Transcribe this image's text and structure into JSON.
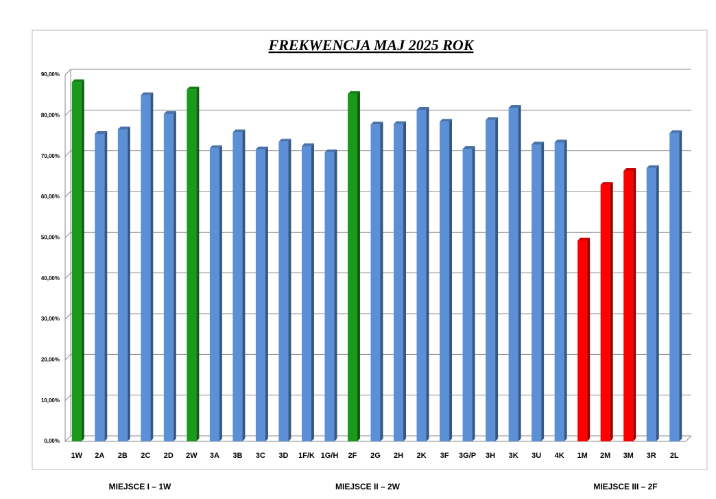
{
  "chart_data": {
    "type": "bar",
    "title": "FREKWENCJA MAJ 2025 ROK",
    "categories": [
      "1W",
      "2A",
      "2B",
      "2C",
      "2D",
      "2W",
      "3A",
      "3B",
      "3C",
      "3D",
      "1F/K",
      "1G/H",
      "2F",
      "2G",
      "2H",
      "2K",
      "3F",
      "3G/P",
      "3H",
      "3K",
      "3U",
      "4K",
      "1M",
      "2M",
      "3M",
      "3R",
      "2L"
    ],
    "values": [
      88.2,
      75.5,
      76.6,
      85.0,
      80.4,
      86.4,
      72.0,
      75.9,
      71.7,
      73.6,
      72.5,
      71.0,
      85.3,
      77.8,
      77.9,
      81.4,
      78.5,
      71.8,
      78.9,
      81.9,
      72.9,
      73.4,
      49.3,
      63.0,
      66.4,
      67.1,
      75.7
    ],
    "colors": [
      "#1a9a1a",
      "#5b8fd6",
      "#5b8fd6",
      "#5b8fd6",
      "#5b8fd6",
      "#1a9a1a",
      "#5b8fd6",
      "#5b8fd6",
      "#5b8fd6",
      "#5b8fd6",
      "#5b8fd6",
      "#5b8fd6",
      "#1a9a1a",
      "#5b8fd6",
      "#5b8fd6",
      "#5b8fd6",
      "#5b8fd6",
      "#5b8fd6",
      "#5b8fd6",
      "#5b8fd6",
      "#5b8fd6",
      "#5b8fd6",
      "#ff0000",
      "#ff0000",
      "#ff0000",
      "#5b8fd6",
      "#5b8fd6"
    ],
    "ylim": [
      0,
      90
    ],
    "yticks": [
      {
        "value": 0,
        "label": "0,00%"
      },
      {
        "value": 10,
        "label": "10,00%"
      },
      {
        "value": 20,
        "label": "20,00%"
      },
      {
        "value": 30,
        "label": "30,00%"
      },
      {
        "value": 40,
        "label": "40,00%"
      },
      {
        "value": 50,
        "label": "50,00%"
      },
      {
        "value": 60,
        "label": "60,00%"
      },
      {
        "value": 70,
        "label": "70,00%"
      },
      {
        "value": 80,
        "label": "80,00%"
      },
      {
        "value": 90,
        "label": "90,00%"
      }
    ],
    "grid": true,
    "annotations": [
      "MIEJSCE I – 1W",
      "MIEJSCE II – 2W",
      "MIEJSCE III – 2F"
    ]
  }
}
